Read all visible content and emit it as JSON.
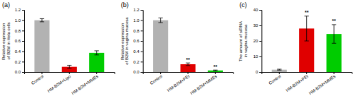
{
  "chart_data": [
    {
      "type": "bar",
      "title": "(a)",
      "categories": [
        "Control",
        "HM-B2M+Lipo",
        "HM-B2M+MMEs"
      ],
      "values": [
        1.0,
        0.1,
        0.37
      ],
      "errors": [
        0.03,
        0.03,
        0.04
      ],
      "colors": [
        "#b2b2b2",
        "#e00000",
        "#00cc00"
      ],
      "ylim": [
        0,
        1.2
      ],
      "yticks": [
        {
          "value": 0,
          "label": "0.0"
        },
        0.2,
        0.4,
        0.6,
        0.8,
        {
          "value": 1,
          "label": "1.0"
        },
        1.2
      ],
      "ylabel": "Relative expression of B2M in Hela cells"
    },
    {
      "type": "bar",
      "title": "(b)",
      "categories": [
        "Control",
        "HM-B2M+PEI",
        "HM-B2M+MMEs"
      ],
      "values": [
        1.0,
        0.15,
        0.03
      ],
      "errors": [
        0.045,
        0.025,
        0.008
      ],
      "colors": [
        "#b2b2b2",
        "#e00000",
        "#00cc00"
      ],
      "ylim": [
        0,
        1.2
      ],
      "yticks": [
        {
          "value": 0,
          "label": "0.0"
        },
        0.2,
        0.4,
        0.6,
        0.8,
        {
          "value": 1,
          "label": "1.0"
        },
        1.2
      ],
      "ylabel": "Relative expression of B2M in vagina mucosa",
      "annotations": [
        {
          "x": "HM-B2M+PEI",
          "text": "**"
        },
        {
          "x": "HM-B2M+MMEs",
          "text": "**"
        }
      ]
    },
    {
      "type": "bar",
      "title": "(c)",
      "categories": [
        "Control",
        "HM-B2M+PEI",
        "HM-B2M+MMEs"
      ],
      "values": [
        1.5,
        28.0,
        24.5
      ],
      "errors": [
        0.3,
        8.0,
        6.0
      ],
      "colors": [
        "#b2b2b2",
        "#e00000",
        "#00cc00"
      ],
      "ylim": [
        0,
        40
      ],
      "yticks": [
        0,
        10,
        20,
        30,
        40
      ],
      "ylabel": "The amount of siRNA in vagina mucosa",
      "annotations": [
        {
          "x": "HM-B2M+PEI",
          "text": "**"
        },
        {
          "x": "HM-B2M+MMEs",
          "text": "**"
        }
      ]
    }
  ]
}
